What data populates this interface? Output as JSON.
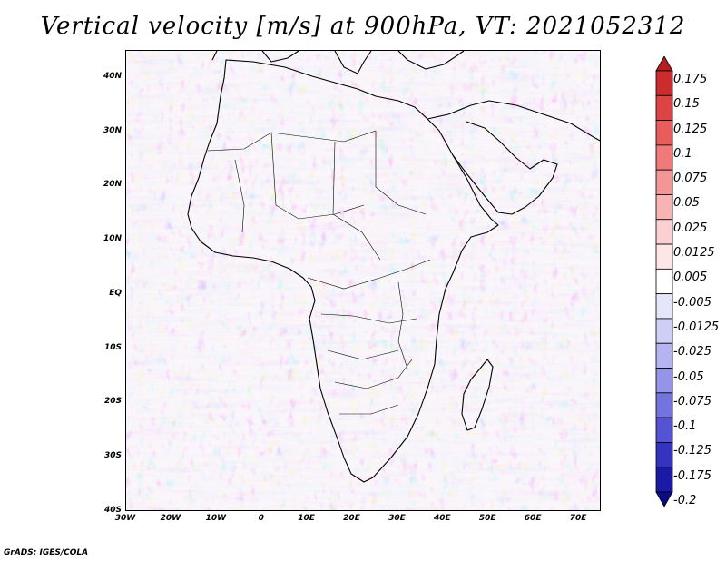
{
  "title": "Vertical velocity [m/s] at 900hPa, VT: 2021052312",
  "variable": "Vertical velocity",
  "units": "m/s",
  "level": "900hPa",
  "valid_time": "2021052312",
  "map": {
    "region": "Africa and Middle East",
    "lon_range": [
      -30,
      75
    ],
    "lat_range": [
      -40,
      45
    ],
    "lat_ticks": [
      {
        "value": 40,
        "label": "40N"
      },
      {
        "value": 30,
        "label": "30N"
      },
      {
        "value": 20,
        "label": "20N"
      },
      {
        "value": 10,
        "label": "10N"
      },
      {
        "value": 0,
        "label": "EQ"
      },
      {
        "value": -10,
        "label": "10S"
      },
      {
        "value": -20,
        "label": "20S"
      },
      {
        "value": -30,
        "label": "30S"
      },
      {
        "value": -40,
        "label": "40S"
      }
    ],
    "lon_ticks": [
      {
        "value": -30,
        "label": "30W"
      },
      {
        "value": -20,
        "label": "20W"
      },
      {
        "value": -10,
        "label": "10W"
      },
      {
        "value": 0,
        "label": "0"
      },
      {
        "value": 10,
        "label": "10E"
      },
      {
        "value": 20,
        "label": "20E"
      },
      {
        "value": 30,
        "label": "30E"
      },
      {
        "value": 40,
        "label": "40E"
      },
      {
        "value": 50,
        "label": "50E"
      },
      {
        "value": 60,
        "label": "60E"
      },
      {
        "value": 70,
        "label": "70E"
      }
    ]
  },
  "colorbar": {
    "levels": [
      "0.175",
      "0.15",
      "0.125",
      "0.1",
      "0.075",
      "0.05",
      "0.025",
      "0.0125",
      "0.005",
      "-0.005",
      "-0.0125",
      "-0.025",
      "-0.05",
      "-0.075",
      "-0.1",
      "-0.125",
      "-0.175",
      "-0.2"
    ],
    "colors": [
      "#b41e1e",
      "#cc2c2c",
      "#dc4444",
      "#e85c5c",
      "#f07a7a",
      "#f49696",
      "#f8b4b4",
      "#fad0d0",
      "#fce6e6",
      "#ffffff",
      "#e6e6fa",
      "#cfcff5",
      "#b4b4f0",
      "#9494e8",
      "#7474de",
      "#5454d2",
      "#3434c0",
      "#1a1aa6",
      "#0a0a8a"
    ]
  },
  "credit": "GrADS: IGES/COLA"
}
